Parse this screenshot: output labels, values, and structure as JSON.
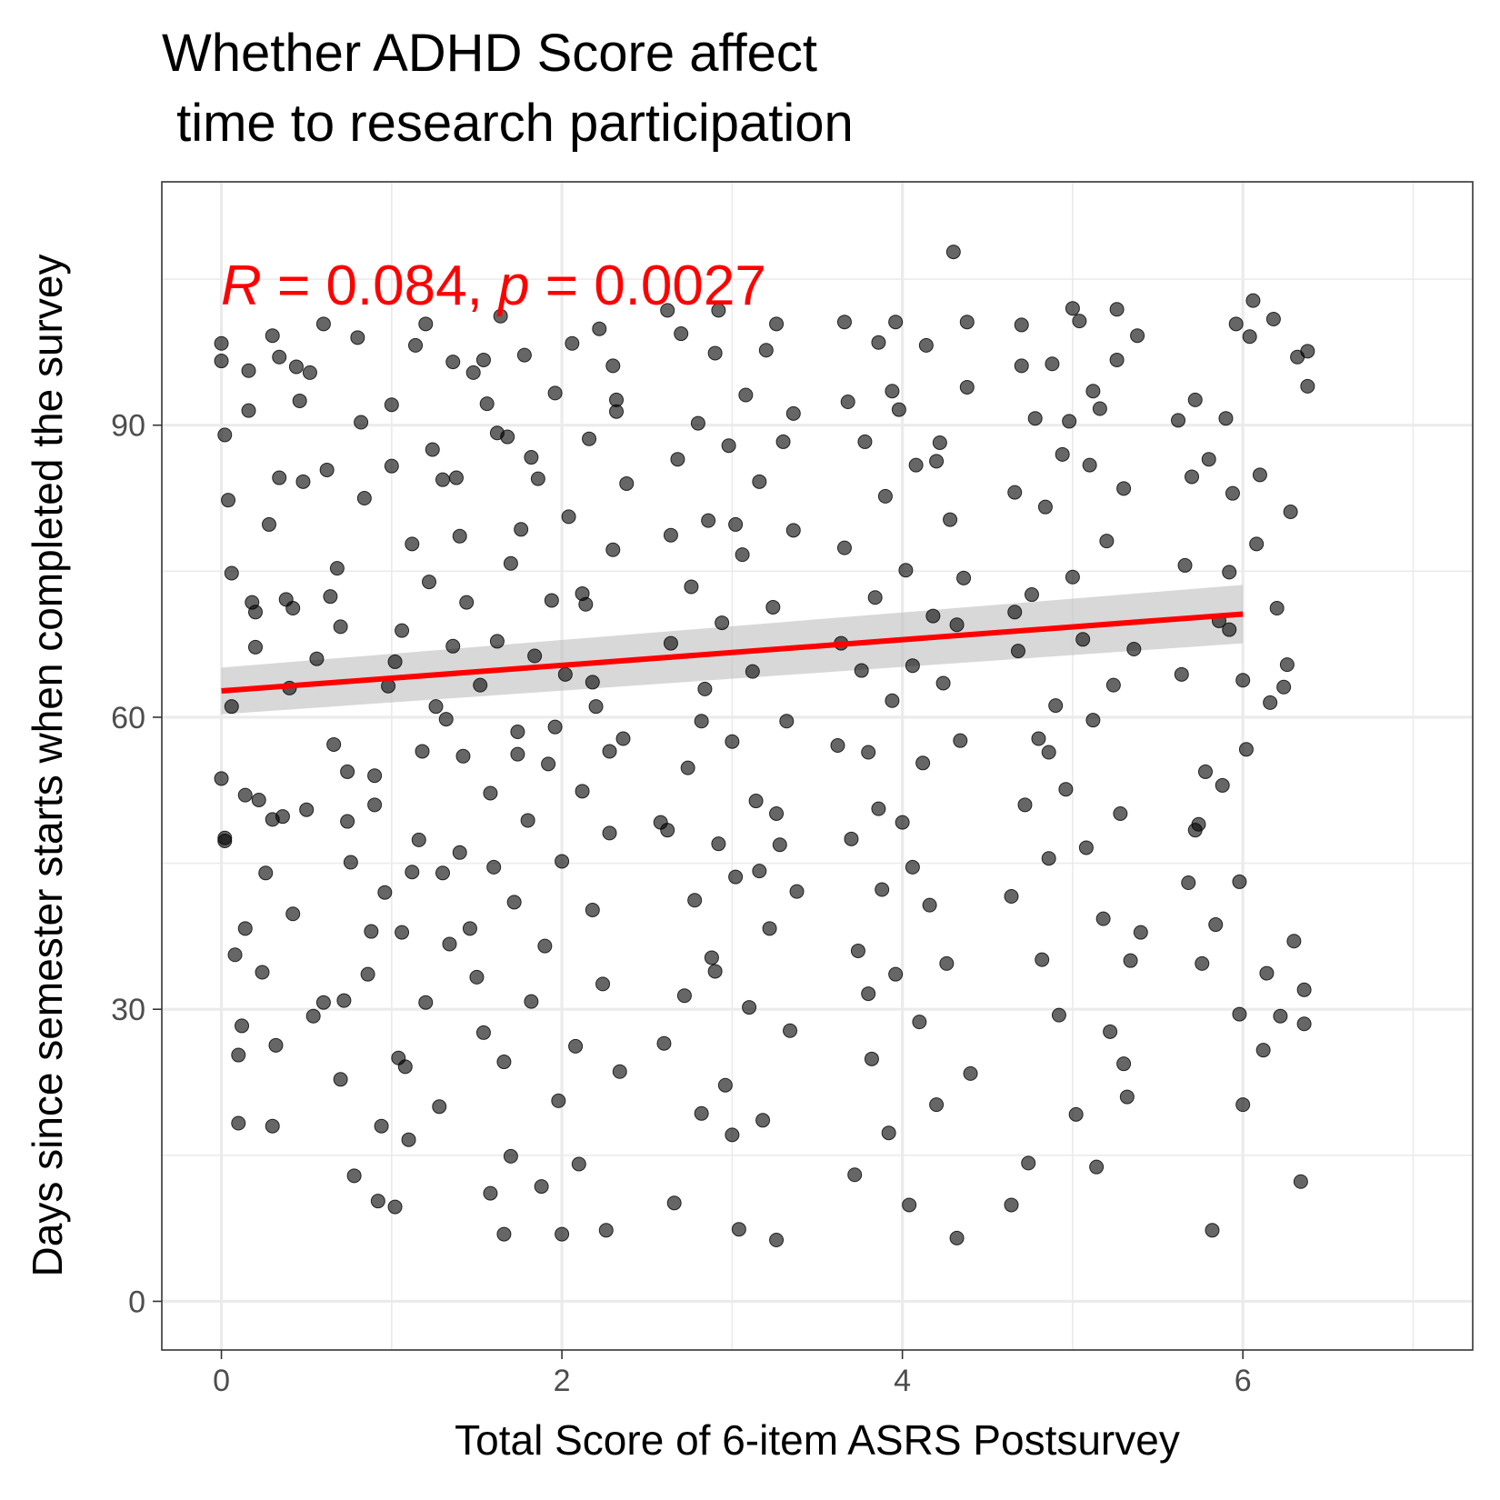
{
  "chart_data": {
    "type": "scatter",
    "title_line1": "Whether ADHD Score affect",
    "title_line2": " time to research participation",
    "xlabel": "Total Score of 6-item ASRS Postsurvey",
    "ylabel": "Days since semester starts when completed the survey",
    "xlim": [
      -0.35,
      7.35
    ],
    "ylim": [
      -5,
      115
    ],
    "xticks": [
      0,
      2,
      4,
      6
    ],
    "xtick_labels": [
      "0",
      "2",
      "4",
      "6"
    ],
    "yticks": [
      0,
      30,
      60,
      90
    ],
    "ytick_labels": [
      "0",
      "30",
      "60",
      "90"
    ],
    "x_minor_gridlines": [
      1,
      3,
      5,
      7
    ],
    "y_minor_gridlines": [
      15,
      45,
      75,
      105
    ],
    "grid": true,
    "point_color": "#000000",
    "point_opacity": 0.6,
    "annotation": {
      "r_symbol": "R",
      "r_text": " = 0.084, ",
      "p_symbol": "p",
      "p_text": " = 0.0027",
      "color": "#ff0000"
    },
    "regression": {
      "color": "#ff0000",
      "band_color": "#bebebe",
      "x": [
        0,
        6
      ],
      "y": [
        62.7,
        70.6
      ],
      "ci_lower": [
        60.3,
        67.6
      ],
      "ci_upper": [
        65.1,
        73.6
      ]
    },
    "points": [
      [
        0.0,
        98.4
      ],
      [
        0.0,
        96.6
      ],
      [
        0.02,
        47.6
      ],
      [
        0.0,
        53.7
      ],
      [
        0.02,
        89.0
      ],
      [
        0.04,
        82.3
      ],
      [
        0.06,
        74.8
      ],
      [
        0.06,
        61.1
      ],
      [
        0.08,
        35.6
      ],
      [
        0.1,
        25.3
      ],
      [
        0.1,
        18.3
      ],
      [
        0.12,
        28.3
      ],
      [
        0.14,
        52.0
      ],
      [
        0.14,
        38.3
      ],
      [
        0.16,
        91.5
      ],
      [
        0.16,
        95.6
      ],
      [
        0.18,
        71.8
      ],
      [
        0.2,
        70.8
      ],
      [
        0.2,
        67.2
      ],
      [
        0.22,
        51.5
      ],
      [
        0.24,
        33.8
      ],
      [
        0.26,
        44.0
      ],
      [
        0.28,
        79.8
      ],
      [
        0.3,
        99.2
      ],
      [
        0.3,
        18.0
      ],
      [
        0.32,
        26.3
      ],
      [
        0.34,
        84.6
      ],
      [
        0.36,
        49.8
      ],
      [
        0.38,
        72.1
      ],
      [
        0.4,
        63.0
      ],
      [
        0.42,
        39.8
      ],
      [
        0.44,
        96.0
      ],
      [
        0.46,
        92.5
      ],
      [
        0.48,
        84.2
      ],
      [
        0.5,
        50.5
      ],
      [
        0.52,
        95.4
      ],
      [
        0.54,
        29.3
      ],
      [
        0.56,
        66.0
      ],
      [
        0.62,
        85.4
      ],
      [
        0.64,
        72.4
      ],
      [
        0.66,
        57.2
      ],
      [
        0.68,
        75.3
      ],
      [
        0.7,
        22.8
      ],
      [
        0.72,
        30.9
      ],
      [
        0.74,
        49.3
      ],
      [
        0.76,
        45.1
      ],
      [
        0.78,
        12.9
      ],
      [
        0.8,
        99.0
      ],
      [
        0.82,
        90.3
      ],
      [
        0.84,
        82.5
      ],
      [
        0.86,
        33.6
      ],
      [
        0.88,
        38.0
      ],
      [
        0.9,
        54.0
      ],
      [
        0.92,
        10.3
      ],
      [
        0.94,
        18.0
      ],
      [
        0.96,
        42.0
      ],
      [
        0.98,
        63.2
      ],
      [
        1.0,
        92.1
      ],
      [
        1.02,
        65.7
      ],
      [
        1.04,
        25.0
      ],
      [
        1.06,
        37.9
      ],
      [
        1.08,
        24.1
      ],
      [
        1.1,
        16.6
      ],
      [
        1.12,
        77.8
      ],
      [
        1.14,
        98.2
      ],
      [
        1.16,
        47.4
      ],
      [
        1.18,
        56.5
      ],
      [
        1.2,
        30.7
      ],
      [
        1.22,
        73.9
      ],
      [
        1.24,
        87.5
      ],
      [
        1.26,
        61.1
      ],
      [
        1.28,
        20.0
      ],
      [
        1.3,
        44.0
      ],
      [
        1.32,
        59.8
      ],
      [
        1.34,
        36.7
      ],
      [
        1.36,
        96.5
      ],
      [
        1.38,
        84.6
      ],
      [
        1.4,
        78.6
      ],
      [
        1.42,
        56.0
      ],
      [
        1.44,
        71.8
      ],
      [
        1.46,
        38.3
      ],
      [
        1.48,
        95.4
      ],
      [
        1.5,
        33.3
      ],
      [
        1.52,
        63.3
      ],
      [
        1.54,
        27.6
      ],
      [
        1.56,
        92.2
      ],
      [
        1.58,
        52.2
      ],
      [
        1.6,
        44.6
      ],
      [
        1.62,
        67.8
      ],
      [
        1.64,
        101.2
      ],
      [
        1.66,
        24.6
      ],
      [
        1.68,
        88.8
      ],
      [
        1.7,
        14.9
      ],
      [
        1.72,
        41.0
      ],
      [
        1.74,
        58.5
      ],
      [
        1.76,
        79.3
      ],
      [
        1.78,
        97.2
      ],
      [
        1.8,
        49.4
      ],
      [
        1.82,
        30.8
      ],
      [
        1.84,
        66.3
      ],
      [
        1.86,
        84.5
      ],
      [
        1.88,
        11.8
      ],
      [
        1.9,
        36.5
      ],
      [
        1.92,
        55.2
      ],
      [
        1.94,
        72.0
      ],
      [
        1.96,
        93.3
      ],
      [
        1.98,
        20.6
      ],
      [
        2.0,
        45.2
      ],
      [
        2.02,
        64.4
      ],
      [
        2.04,
        80.6
      ],
      [
        2.06,
        98.4
      ],
      [
        2.08,
        26.2
      ],
      [
        2.1,
        14.1
      ],
      [
        2.12,
        52.4
      ],
      [
        2.14,
        71.6
      ],
      [
        2.16,
        88.6
      ],
      [
        2.18,
        40.2
      ],
      [
        2.2,
        61.1
      ],
      [
        2.22,
        99.9
      ],
      [
        2.24,
        32.6
      ],
      [
        2.26,
        7.3
      ],
      [
        2.28,
        48.1
      ],
      [
        2.3,
        77.2
      ],
      [
        2.32,
        92.6
      ],
      [
        2.34,
        23.6
      ],
      [
        2.36,
        57.8
      ],
      [
        2.38,
        84.0
      ],
      [
        2.0,
        6.9
      ],
      [
        1.66,
        6.9
      ],
      [
        1.58,
        11.1
      ],
      [
        1.0,
        85.8
      ],
      [
        0.6,
        100.4
      ],
      [
        0.42,
        71.2
      ],
      [
        1.2,
        100.4
      ],
      [
        1.54,
        96.7
      ],
      [
        2.3,
        96.1
      ],
      [
        2.6,
        26.5
      ],
      [
        2.62,
        48.4
      ],
      [
        2.64,
        67.6
      ],
      [
        2.66,
        10.1
      ],
      [
        2.68,
        86.5
      ],
      [
        2.7,
        99.4
      ],
      [
        2.72,
        31.4
      ],
      [
        2.74,
        54.8
      ],
      [
        2.76,
        73.4
      ],
      [
        2.78,
        41.2
      ],
      [
        2.8,
        90.2
      ],
      [
        2.82,
        19.3
      ],
      [
        2.84,
        62.9
      ],
      [
        2.86,
        80.2
      ],
      [
        2.88,
        35.3
      ],
      [
        2.9,
        97.4
      ],
      [
        2.92,
        47.0
      ],
      [
        2.94,
        69.7
      ],
      [
        2.96,
        22.2
      ],
      [
        2.98,
        87.9
      ],
      [
        3.0,
        57.5
      ],
      [
        3.02,
        43.6
      ],
      [
        3.04,
        7.4
      ],
      [
        3.06,
        76.7
      ],
      [
        3.08,
        93.1
      ],
      [
        3.1,
        30.2
      ],
      [
        3.12,
        64.7
      ],
      [
        3.14,
        51.4
      ],
      [
        3.16,
        84.2
      ],
      [
        3.18,
        18.6
      ],
      [
        3.2,
        97.7
      ],
      [
        3.22,
        38.3
      ],
      [
        3.24,
        71.3
      ],
      [
        3.26,
        6.3
      ],
      [
        3.28,
        46.9
      ],
      [
        3.3,
        88.3
      ],
      [
        3.32,
        59.6
      ],
      [
        3.34,
        27.8
      ],
      [
        3.36,
        79.2
      ],
      [
        3.38,
        42.1
      ],
      [
        3.0,
        17.1
      ],
      [
        2.62,
        101.8
      ],
      [
        2.92,
        101.8
      ],
      [
        3.26,
        100.4
      ],
      [
        3.64,
        67.6
      ],
      [
        3.66,
        77.4
      ],
      [
        3.68,
        92.4
      ],
      [
        3.7,
        47.5
      ],
      [
        3.72,
        13.0
      ],
      [
        3.74,
        36.0
      ],
      [
        3.76,
        64.8
      ],
      [
        3.78,
        88.3
      ],
      [
        3.8,
        56.4
      ],
      [
        3.82,
        24.9
      ],
      [
        3.84,
        72.3
      ],
      [
        3.86,
        98.5
      ],
      [
        3.88,
        42.3
      ],
      [
        3.9,
        82.7
      ],
      [
        3.92,
        17.3
      ],
      [
        3.94,
        61.7
      ],
      [
        3.96,
        33.6
      ],
      [
        3.98,
        91.6
      ],
      [
        4.0,
        49.2
      ],
      [
        4.02,
        75.1
      ],
      [
        4.04,
        9.9
      ],
      [
        4.06,
        65.3
      ],
      [
        4.08,
        85.9
      ],
      [
        4.1,
        28.7
      ],
      [
        4.12,
        55.3
      ],
      [
        4.14,
        98.2
      ],
      [
        4.16,
        40.7
      ],
      [
        4.18,
        70.4
      ],
      [
        4.2,
        20.2
      ],
      [
        4.22,
        88.2
      ],
      [
        4.24,
        63.5
      ],
      [
        4.26,
        34.7
      ],
      [
        4.28,
        80.3
      ],
      [
        4.3,
        107.8
      ],
      [
        4.32,
        6.5
      ],
      [
        4.34,
        57.6
      ],
      [
        4.36,
        74.3
      ],
      [
        4.38,
        93.9
      ],
      [
        4.4,
        23.4
      ],
      [
        3.62,
        57.1
      ],
      [
        3.66,
        100.6
      ],
      [
        3.96,
        100.6
      ],
      [
        4.38,
        100.6
      ],
      [
        4.64,
        41.6
      ],
      [
        4.66,
        83.1
      ],
      [
        4.68,
        66.8
      ],
      [
        4.7,
        96.1
      ],
      [
        4.72,
        51.0
      ],
      [
        4.74,
        14.2
      ],
      [
        4.76,
        72.6
      ],
      [
        4.78,
        90.7
      ],
      [
        4.8,
        57.8
      ],
      [
        4.82,
        35.1
      ],
      [
        4.84,
        81.6
      ],
      [
        4.86,
        45.5
      ],
      [
        4.88,
        96.3
      ],
      [
        4.9,
        61.2
      ],
      [
        4.92,
        29.4
      ],
      [
        4.94,
        87.0
      ],
      [
        4.96,
        52.6
      ],
      [
        4.98,
        90.4
      ],
      [
        5.0,
        74.4
      ],
      [
        5.02,
        19.2
      ],
      [
        5.04,
        100.7
      ],
      [
        5.06,
        68.0
      ],
      [
        5.08,
        46.6
      ],
      [
        5.1,
        85.9
      ],
      [
        5.12,
        59.7
      ],
      [
        5.14,
        13.8
      ],
      [
        5.16,
        91.7
      ],
      [
        5.18,
        39.3
      ],
      [
        5.2,
        78.1
      ],
      [
        5.22,
        27.7
      ],
      [
        5.24,
        63.3
      ],
      [
        5.26,
        96.7
      ],
      [
        5.28,
        50.1
      ],
      [
        5.3,
        83.5
      ],
      [
        5.32,
        21.0
      ],
      [
        5.34,
        35.0
      ],
      [
        5.36,
        67.0
      ],
      [
        5.38,
        99.2
      ],
      [
        5.4,
        37.9
      ],
      [
        4.64,
        9.9
      ],
      [
        4.66,
        70.8
      ],
      [
        4.7,
        100.3
      ],
      [
        5.0,
        102.0
      ],
      [
        5.26,
        101.9
      ],
      [
        5.62,
        90.5
      ],
      [
        5.64,
        64.4
      ],
      [
        5.66,
        75.6
      ],
      [
        5.68,
        43.0
      ],
      [
        5.7,
        84.7
      ],
      [
        5.72,
        92.6
      ],
      [
        5.74,
        49.0
      ],
      [
        5.76,
        34.7
      ],
      [
        5.78,
        54.4
      ],
      [
        5.8,
        86.5
      ],
      [
        5.82,
        7.3
      ],
      [
        5.84,
        38.7
      ],
      [
        5.86,
        69.9
      ],
      [
        5.88,
        53.0
      ],
      [
        5.9,
        90.7
      ],
      [
        5.92,
        74.9
      ],
      [
        5.94,
        83.0
      ],
      [
        5.96,
        100.4
      ],
      [
        5.98,
        29.5
      ],
      [
        6.0,
        63.8
      ],
      [
        6.02,
        56.7
      ],
      [
        6.04,
        99.1
      ],
      [
        6.06,
        102.8
      ],
      [
        6.08,
        77.8
      ],
      [
        6.1,
        84.9
      ],
      [
        6.12,
        25.8
      ],
      [
        6.14,
        33.7
      ],
      [
        6.16,
        61.5
      ],
      [
        6.18,
        100.9
      ],
      [
        6.2,
        71.2
      ],
      [
        6.22,
        29.3
      ],
      [
        6.24,
        63.1
      ],
      [
        6.26,
        65.4
      ],
      [
        6.28,
        81.1
      ],
      [
        6.3,
        37.0
      ],
      [
        6.32,
        97.0
      ],
      [
        6.34,
        12.3
      ],
      [
        6.36,
        32.0
      ],
      [
        6.38,
        94.0
      ],
      [
        6.0,
        20.2
      ],
      [
        5.98,
        43.1
      ],
      [
        6.36,
        28.5
      ],
      [
        6.38,
        97.6
      ],
      [
        0.02,
        47.3
      ],
      [
        0.3,
        49.5
      ],
      [
        0.34,
        97.0
      ],
      [
        0.6,
        30.7
      ],
      [
        0.7,
        69.3
      ],
      [
        0.74,
        54.4
      ],
      [
        0.9,
        51.0
      ],
      [
        1.02,
        9.7
      ],
      [
        1.06,
        68.9
      ],
      [
        1.12,
        44.1
      ],
      [
        1.3,
        84.4
      ],
      [
        1.36,
        67.3
      ],
      [
        1.4,
        46.1
      ],
      [
        1.62,
        89.2
      ],
      [
        1.7,
        75.8
      ],
      [
        1.74,
        56.2
      ],
      [
        1.82,
        86.7
      ],
      [
        1.96,
        59.0
      ],
      [
        2.12,
        72.7
      ],
      [
        2.18,
        63.6
      ],
      [
        2.28,
        56.5
      ],
      [
        2.32,
        91.4
      ],
      [
        2.58,
        49.2
      ],
      [
        2.64,
        78.7
      ],
      [
        2.82,
        59.6
      ],
      [
        2.9,
        33.9
      ],
      [
        3.02,
        79.8
      ],
      [
        3.16,
        44.2
      ],
      [
        3.26,
        50.1
      ],
      [
        3.36,
        91.2
      ],
      [
        3.8,
        31.6
      ],
      [
        3.86,
        50.6
      ],
      [
        3.94,
        93.5
      ],
      [
        4.06,
        44.6
      ],
      [
        4.2,
        86.3
      ],
      [
        4.32,
        69.5
      ],
      [
        4.86,
        56.4
      ],
      [
        5.12,
        93.5
      ],
      [
        5.3,
        24.4
      ],
      [
        5.72,
        48.4
      ],
      [
        5.92,
        69.0
      ]
    ]
  }
}
